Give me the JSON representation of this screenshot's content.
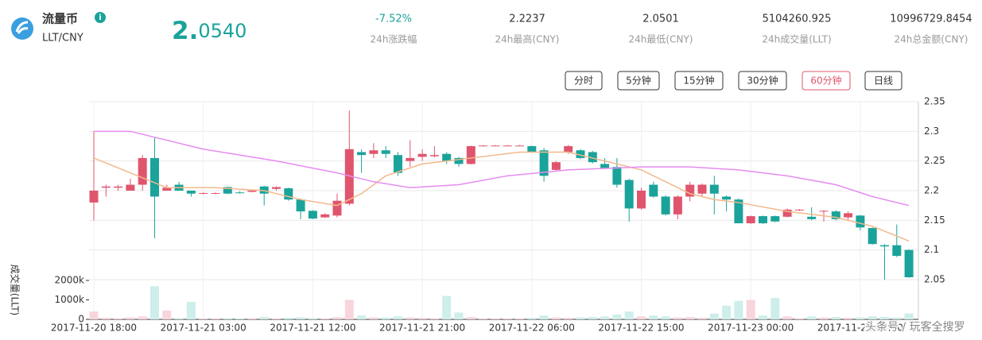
{
  "header": {
    "name": "流量币",
    "pair": "LLT/CNY",
    "price": "2.0540",
    "stats": [
      {
        "value": "-7.52%",
        "label": "24h涨跌幅"
      },
      {
        "value": "2.2237",
        "label": "24h最高(CNY)"
      },
      {
        "value": "2.0501",
        "label": "24h最低(CNY)"
      },
      {
        "value": "5104260.925",
        "label": "24h成交量(LLT)"
      },
      {
        "value": "10996729.8454",
        "label": "24h总金额(CNY)"
      }
    ]
  },
  "buttons": [
    "分时",
    "5分钟",
    "15分钟",
    "30分钟",
    "60分钟",
    "日线"
  ],
  "active_button": 4,
  "watermark": "头条号 / 玩客全搜罗",
  "chart_data": [
    {
      "type": "candlestick",
      "up_color": "#e0556e",
      "down_color": "#1aa39a",
      "grid": true,
      "categories": [
        "2017-11-20 18:00",
        null,
        null,
        null,
        null,
        null,
        null,
        null,
        null,
        "2017-11-21 03:00",
        null,
        null,
        null,
        null,
        null,
        null,
        null,
        null,
        "2017-11-21 12:00",
        null,
        null,
        null,
        null,
        null,
        null,
        null,
        null,
        "2017-11-21 21:00",
        null,
        null,
        null,
        null,
        null,
        null,
        null,
        null,
        "2017-11-22 06:00",
        null,
        null,
        null,
        null,
        null,
        null,
        null,
        null,
        "2017-11-22 15:00",
        null,
        null,
        null,
        null,
        null,
        null,
        null,
        null,
        "2017-11-23 00:00",
        null,
        null,
        null,
        null,
        null,
        null,
        null,
        null,
        "2017-11-23 09:00",
        null,
        null,
        null,
        null
      ],
      "open": [
        2.18,
        2.205,
        2.205,
        2.2,
        2.21,
        2.255,
        2.2,
        2.21,
        2.2,
        2.195,
        2.195,
        2.206,
        2.197,
        2.198,
        2.207,
        2.203,
        2.204,
        2.185,
        2.166,
        2.155,
        2.158,
        2.178,
        2.265,
        2.262,
        2.268,
        2.26,
        2.25,
        2.257,
        2.258,
        2.262,
        2.255,
        2.245,
        2.275,
        2.275,
        2.275,
        2.275,
        2.275,
        2.268,
        2.235,
        2.265,
        2.268,
        2.265,
        2.245,
        2.24,
        2.218,
        2.17,
        2.21,
        2.19,
        2.16,
        2.19,
        2.195,
        2.21,
        2.19,
        2.185,
        2.145,
        2.157,
        2.157,
        2.156,
        2.167,
        2.156,
        2.165,
        2.165,
        2.155,
        2.158,
        2.137,
        2.108,
        2.108,
        2.1
      ],
      "high": [
        2.3,
        2.21,
        2.21,
        2.22,
        2.26,
        2.29,
        2.21,
        2.215,
        2.2,
        2.197,
        2.197,
        2.207,
        2.199,
        2.201,
        2.208,
        2.207,
        2.205,
        2.187,
        2.167,
        2.162,
        2.195,
        2.335,
        2.27,
        2.28,
        2.275,
        2.265,
        2.285,
        2.27,
        2.275,
        2.265,
        2.257,
        2.276,
        2.277,
        2.277,
        2.277,
        2.277,
        2.276,
        2.272,
        2.25,
        2.277,
        2.27,
        2.267,
        2.255,
        2.255,
        2.22,
        2.205,
        2.215,
        2.192,
        2.192,
        2.215,
        2.212,
        2.225,
        2.192,
        2.187,
        2.158,
        2.158,
        2.158,
        2.17,
        2.169,
        2.172,
        2.167,
        2.167,
        2.165,
        2.159,
        2.138,
        2.11,
        2.143,
        2.101
      ],
      "low": [
        2.15,
        2.19,
        2.2,
        2.2,
        2.2,
        2.12,
        2.2,
        2.2,
        2.19,
        2.194,
        2.194,
        2.194,
        2.195,
        2.197,
        2.175,
        2.2,
        2.183,
        2.152,
        2.152,
        2.154,
        2.155,
        2.175,
        2.23,
        2.255,
        2.255,
        2.225,
        2.24,
        2.25,
        2.256,
        2.245,
        2.24,
        2.244,
        2.275,
        2.275,
        2.275,
        2.275,
        2.264,
        2.215,
        2.234,
        2.262,
        2.253,
        2.246,
        2.237,
        2.205,
        2.148,
        2.168,
        2.188,
        2.158,
        2.152,
        2.182,
        2.19,
        2.16,
        2.165,
        2.145,
        2.144,
        2.144,
        2.147,
        2.155,
        2.166,
        2.15,
        2.148,
        2.15,
        2.15,
        2.133,
        2.109,
        2.05,
        2.088,
        2.053
      ],
      "close": [
        2.2,
        2.207,
        2.207,
        2.21,
        2.255,
        2.19,
        2.205,
        2.2,
        2.195,
        2.196,
        2.196,
        2.195,
        2.196,
        2.2,
        2.195,
        2.206,
        2.185,
        2.165,
        2.153,
        2.16,
        2.183,
        2.27,
        2.26,
        2.268,
        2.262,
        2.23,
        2.255,
        2.262,
        2.26,
        2.25,
        2.245,
        2.275,
        2.276,
        2.276,
        2.276,
        2.276,
        2.265,
        2.225,
        2.248,
        2.275,
        2.255,
        2.248,
        2.238,
        2.21,
        2.17,
        2.2,
        2.19,
        2.16,
        2.19,
        2.21,
        2.21,
        2.195,
        2.185,
        2.145,
        2.157,
        2.145,
        2.148,
        2.168,
        2.168,
        2.152,
        2.166,
        2.152,
        2.162,
        2.138,
        2.11,
        2.106,
        2.09,
        2.054
      ],
      "lines": [
        {
          "color": "#f2b98c",
          "x": [
            0,
            3,
            6,
            10,
            14,
            17,
            20,
            22,
            24,
            27,
            31,
            35,
            39,
            42,
            45,
            47,
            49,
            51,
            53,
            57,
            61,
            64,
            67
          ],
          "values": [
            2.255,
            2.23,
            2.205,
            2.205,
            2.2,
            2.185,
            2.175,
            2.195,
            2.225,
            2.245,
            2.255,
            2.265,
            2.265,
            2.25,
            2.235,
            2.215,
            2.195,
            2.185,
            2.18,
            2.165,
            2.155,
            2.14,
            2.115
          ]
        },
        {
          "color": "#e68cf0",
          "x": [
            0,
            3,
            9,
            15,
            20,
            23,
            26,
            30,
            34,
            39,
            45,
            49,
            53,
            57,
            61,
            64,
            67
          ],
          "values": [
            2.3,
            2.3,
            2.27,
            2.25,
            2.23,
            2.215,
            2.205,
            2.21,
            2.225,
            2.235,
            2.24,
            2.24,
            2.235,
            2.225,
            2.21,
            2.19,
            2.175
          ]
        }
      ],
      "ylim": [
        2.05,
        2.35
      ],
      "yticks": [
        2.05,
        2.1,
        2.15,
        2.2,
        2.25,
        2.3,
        2.35
      ]
    },
    {
      "type": "bar",
      "ylabel": "成交量(LLT)",
      "up_color": "#f8d5dc",
      "down_color": "#cdeeea",
      "values": [
        400,
        80,
        60,
        100,
        150,
        1700,
        450,
        60,
        900,
        50,
        50,
        60,
        50,
        60,
        120,
        50,
        80,
        100,
        60,
        50,
        120,
        1000,
        200,
        100,
        100,
        150,
        100,
        80,
        60,
        1200,
        350,
        120,
        50,
        50,
        50,
        50,
        80,
        200,
        100,
        80,
        100,
        120,
        150,
        250,
        400,
        150,
        200,
        150,
        100,
        120,
        80,
        300,
        700,
        950,
        1000,
        200,
        1100,
        150,
        60,
        150,
        100,
        120,
        80,
        100,
        150,
        120,
        100,
        300
      ],
      "ylim": [
        0,
        2000
      ],
      "yticks": [
        0,
        {
          "value": 1000,
          "label": "1000k"
        },
        {
          "value": 2000,
          "label": "2000k"
        }
      ]
    }
  ]
}
